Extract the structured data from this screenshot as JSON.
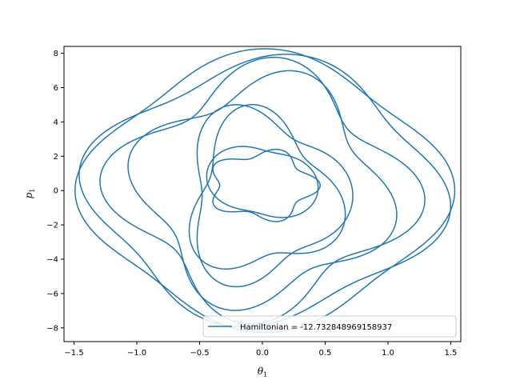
{
  "chart_data": {
    "type": "line",
    "title": "",
    "xlabel": "θ",
    "xlabel_sub": "1",
    "ylabel": "p",
    "ylabel_sub": "1",
    "xlim": [
      -1.58,
      1.58
    ],
    "ylim": [
      -8.8,
      8.4
    ],
    "xticks": [
      -1.5,
      -1.0,
      -0.5,
      0.0,
      0.5,
      1.0,
      1.5
    ],
    "xtick_labels": [
      "−1.5",
      "−1.0",
      "−0.5",
      "0.0",
      "0.5",
      "1.0",
      "1.5"
    ],
    "yticks": [
      -8,
      -6,
      -4,
      -2,
      0,
      2,
      4,
      6,
      8
    ],
    "ytick_labels": [
      "−8",
      "−6",
      "−4",
      "−2",
      "0",
      "2",
      "4",
      "6",
      "8"
    ],
    "grid": false,
    "legend_position": "lower-right",
    "series": [
      {
        "name": "Hamiltonian = -12.732848969158937",
        "color": "#1f77b4",
        "loops": [
          {
            "cx": 0.02,
            "cy": 0.0,
            "a": 1.4,
            "b": 7.65,
            "k": 4,
            "amp": 0.08,
            "phase": 0.0
          },
          {
            "cx": 0.02,
            "cy": 0.0,
            "a": 1.36,
            "b": 7.3,
            "k": 4,
            "amp": 0.1,
            "phase": 0.78
          },
          {
            "cx": 0.0,
            "cy": 0.0,
            "a": 1.1,
            "b": 6.6,
            "k": 4,
            "amp": 0.18,
            "phase": 0.39
          },
          {
            "cx": 0.0,
            "cy": 0.0,
            "a": 0.95,
            "b": 6.2,
            "k": 4,
            "amp": 0.16,
            "phase": 1.17
          },
          {
            "cx": 0.0,
            "cy": -0.3,
            "a": 0.6,
            "b": 4.8,
            "k": 3,
            "amp": 0.2,
            "phase": 0.0
          },
          {
            "cx": 0.0,
            "cy": -0.3,
            "a": 0.56,
            "b": 4.4,
            "k": 3,
            "amp": 0.22,
            "phase": 1.0
          },
          {
            "cx": 0.0,
            "cy": 0.5,
            "a": 0.36,
            "b": 2.4,
            "k": 2,
            "amp": 0.25,
            "phase": 0.5
          },
          {
            "cx": 0.0,
            "cy": 0.3,
            "a": 0.4,
            "b": 1.9,
            "k": 5,
            "amp": 0.15,
            "phase": 0.0
          }
        ]
      }
    ]
  }
}
